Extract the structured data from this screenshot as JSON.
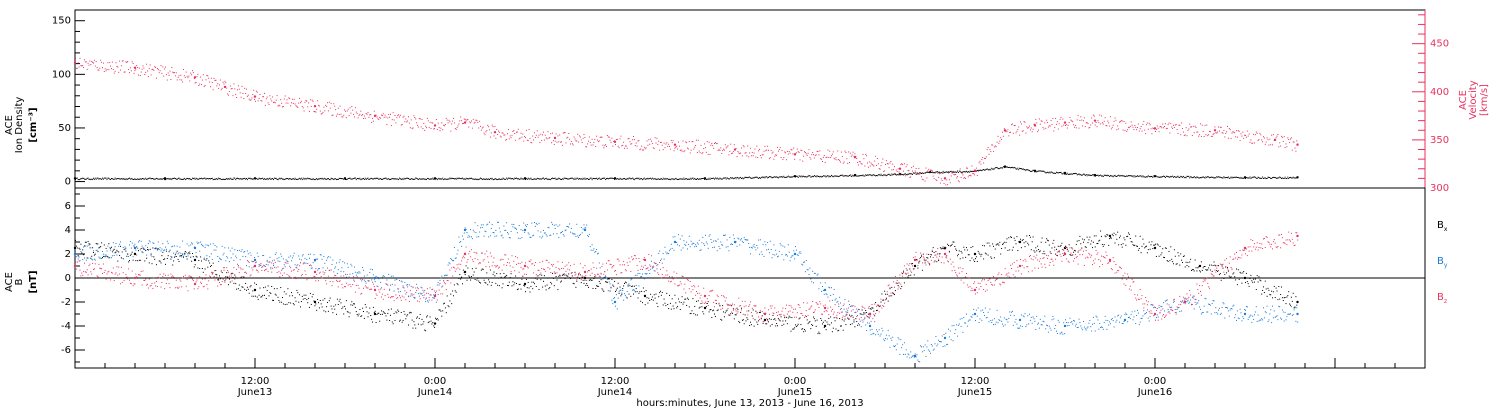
{
  "colors": {
    "black": "#000000",
    "pink": "#e8325e",
    "blue": "#1a7ad6"
  },
  "chart_data": [
    {
      "type": "scatter",
      "panel": "top",
      "ylabel_lines": [
        "ACE",
        "Ion Density",
        "[cm⁻³]"
      ],
      "y2label_lines": [
        "ACE",
        "Velocity",
        "[km/s]"
      ],
      "ylim": [
        0,
        160
      ],
      "y2lim": [
        300,
        485
      ],
      "yticks": [
        "0",
        "50",
        "100",
        "150"
      ],
      "y2ticks": [
        "300",
        "350",
        "400",
        "450"
      ],
      "xlim_hours": [
        0,
        81.5
      ],
      "series": [
        {
          "name": "",
          "color": "#000000",
          "axis": "left",
          "x": [
            0,
            6,
            12,
            18,
            24,
            30,
            36,
            42,
            48,
            52,
            55,
            57,
            60,
            62,
            64,
            66,
            68,
            72,
            78,
            81.5
          ],
          "y": [
            3,
            3,
            3,
            3,
            3,
            3,
            3,
            3,
            5,
            6,
            7,
            9,
            10,
            14,
            10,
            8,
            6,
            5,
            4,
            4
          ]
        },
        {
          "name": "",
          "color": "#e8325e",
          "axis": "right",
          "x": [
            0,
            4,
            8,
            10,
            12,
            16,
            20,
            24,
            26,
            28,
            32,
            36,
            40,
            44,
            48,
            52,
            55,
            58,
            60,
            62,
            64,
            66,
            68,
            72,
            76,
            80,
            81.5
          ],
          "y": [
            430,
            425,
            415,
            405,
            395,
            385,
            375,
            365,
            368,
            358,
            352,
            348,
            345,
            340,
            335,
            332,
            320,
            310,
            318,
            360,
            365,
            368,
            370,
            362,
            360,
            350,
            345
          ]
        }
      ]
    },
    {
      "type": "scatter",
      "panel": "bottom",
      "ylabel_lines": [
        "ACE",
        "B",
        "[nT]"
      ],
      "ylim": [
        -7.5,
        7.5
      ],
      "yticks": [
        "-6",
        "-4",
        "-2",
        "0",
        "2",
        "4",
        "6"
      ],
      "xlabel": "hours:minutes, June 13, 2013 - June 16, 2013",
      "xticks": [
        {
          "hour": 12,
          "label": "12:00",
          "sub": "June13"
        },
        {
          "hour": 24,
          "label": "0:00",
          "sub": "June14"
        },
        {
          "hour": 36,
          "label": "12:00",
          "sub": "June14"
        },
        {
          "hour": 48,
          "label": "0:00",
          "sub": "June15"
        },
        {
          "hour": 60,
          "label": "12:00",
          "sub": "June15"
        },
        {
          "hour": 72,
          "label": "0:00",
          "sub": "June16"
        }
      ],
      "xlim_hours": [
        0,
        81.5
      ],
      "series": [
        {
          "name": "Bx",
          "label_main": "B",
          "label_sub": "x",
          "color": "#000000",
          "x": [
            0,
            4,
            8,
            12,
            16,
            20,
            24,
            26,
            30,
            34,
            38,
            42,
            46,
            50,
            53,
            56,
            58,
            60,
            63,
            66,
            69,
            72,
            75,
            78,
            81.5
          ],
          "y": [
            2.5,
            2.0,
            1.5,
            -1.0,
            -2.0,
            -3.0,
            -3.8,
            0.5,
            -0.5,
            0.0,
            -1.5,
            -2.5,
            -3.5,
            -4.0,
            -3.0,
            1.0,
            2.5,
            2.0,
            3.0,
            2.5,
            3.5,
            2.5,
            1.0,
            0.0,
            -2.0
          ]
        },
        {
          "name": "By",
          "label_main": "B",
          "label_sub": "y",
          "color": "#1a7ad6",
          "x": [
            0,
            4,
            8,
            12,
            16,
            20,
            24,
            26,
            30,
            34,
            36,
            40,
            44,
            48,
            50,
            53,
            56,
            58,
            60,
            63,
            66,
            70,
            74,
            78,
            81.5
          ],
          "y": [
            2.0,
            2.5,
            2.5,
            1.5,
            1.5,
            0.0,
            -1.5,
            4.0,
            4.0,
            4.0,
            -2.0,
            3.0,
            3.0,
            2.0,
            -1.0,
            -4.0,
            -6.5,
            -5.0,
            -3.0,
            -3.5,
            -4.0,
            -3.5,
            -2.0,
            -3.0,
            -3.0
          ]
        },
        {
          "name": "Bz",
          "label_main": "B",
          "label_sub": "z",
          "color": "#e8325e",
          "x": [
            0,
            4,
            8,
            12,
            16,
            20,
            24,
            26,
            30,
            34,
            38,
            42,
            46,
            50,
            53,
            56,
            58,
            60,
            63,
            66,
            69,
            72,
            74,
            78,
            81.5
          ],
          "y": [
            1.0,
            0.0,
            -0.5,
            1.0,
            0.5,
            -1.0,
            -1.5,
            2.0,
            1.0,
            0.5,
            1.5,
            -1.5,
            -3.0,
            -2.5,
            -3.0,
            1.5,
            2.0,
            -1.0,
            1.0,
            2.0,
            1.5,
            -3.0,
            -2.0,
            2.5,
            3.5
          ]
        }
      ]
    }
  ]
}
